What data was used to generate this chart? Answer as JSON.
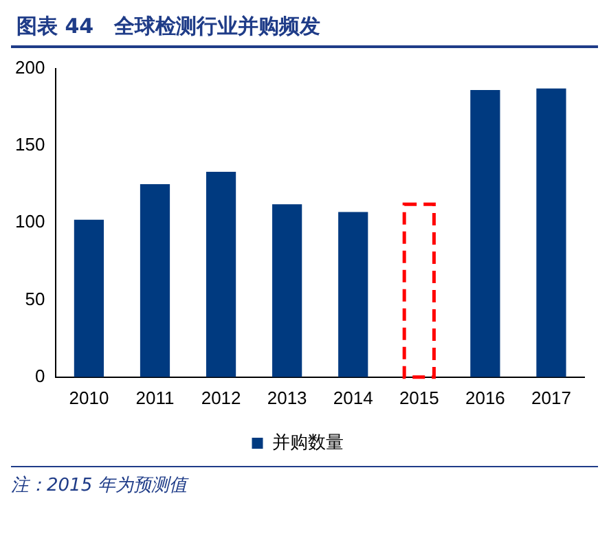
{
  "chart_data": {
    "type": "bar",
    "title": "图表 44　全球检测行业并购频发",
    "categories": [
      "2010",
      "2011",
      "2012",
      "2013",
      "2014",
      "2015",
      "2016",
      "2017"
    ],
    "series": [
      {
        "name": "并购数量",
        "color": "#003a80",
        "values": [
          102,
          125,
          133,
          112,
          107,
          null,
          186,
          187
        ]
      },
      {
        "color": "#ff0000",
        "line_style": "dashed",
        "values": [
          null,
          null,
          null,
          null,
          null,
          112,
          null,
          null
        ]
      }
    ],
    "ylim": [
      0,
      200
    ],
    "yticks": [
      0,
      50,
      100,
      150,
      200
    ],
    "grid": false,
    "legend": "bottom",
    "annotations": [
      "注：2015 年为预测值"
    ]
  }
}
